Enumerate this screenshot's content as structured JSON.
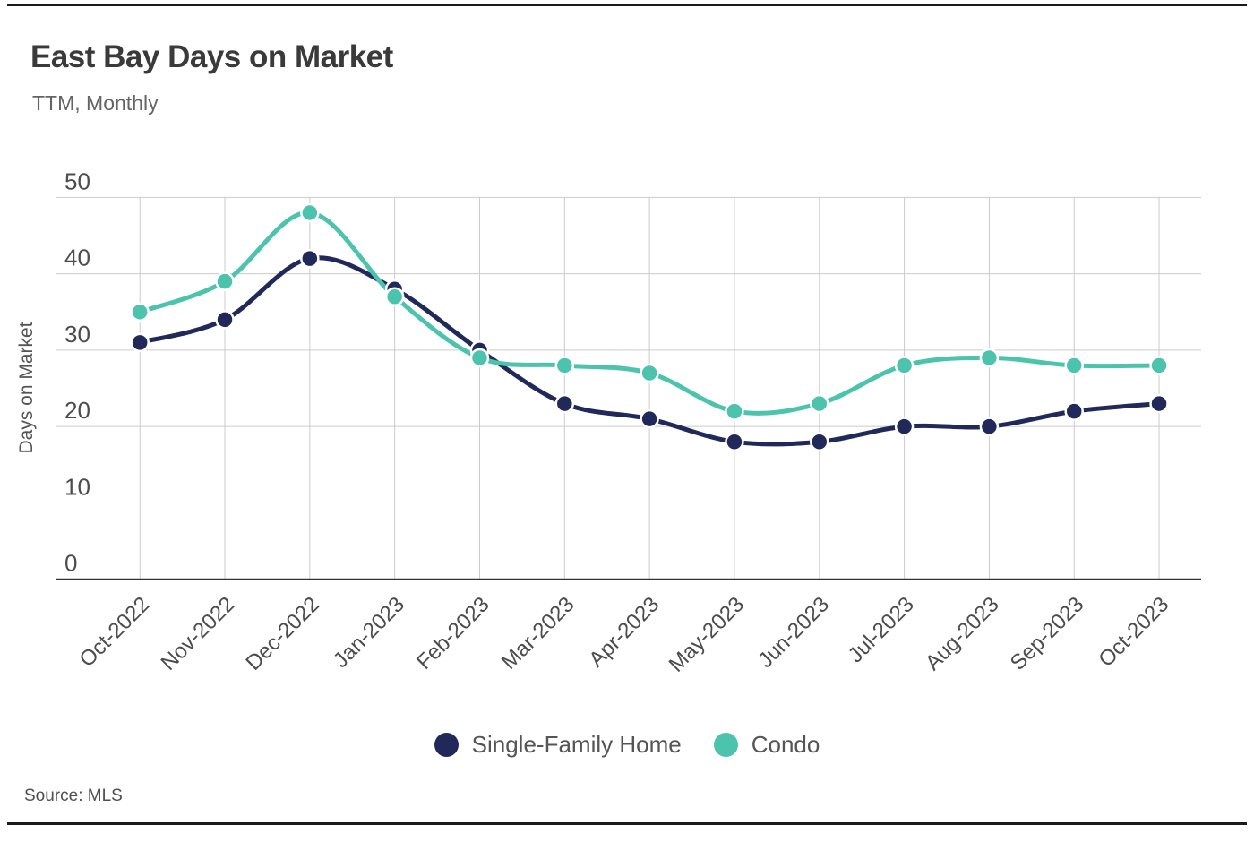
{
  "header": {
    "title": "East Bay Days on Market",
    "subtitle": "TTM, Monthly"
  },
  "footer": {
    "source": "Source: MLS"
  },
  "chart_data": {
    "type": "line",
    "title": "East Bay Days on Market",
    "subtitle": "TTM, Monthly",
    "xlabel": "",
    "ylabel": "Days on Market",
    "ylim": [
      0,
      50
    ],
    "yticks": [
      0,
      10,
      20,
      30,
      40,
      50
    ],
    "grid": true,
    "line_interpolation": "curved",
    "legend_position": "bottom-center",
    "categories": [
      "Oct-2022",
      "Nov-2022",
      "Dec-2022",
      "Jan-2023",
      "Feb-2023",
      "Mar-2023",
      "Apr-2023",
      "May-2023",
      "Jun-2023",
      "Jul-2023",
      "Aug-2023",
      "Sep-2023",
      "Oct-2023"
    ],
    "series": [
      {
        "name": "Single-Family Home",
        "color": "#20295a",
        "values": [
          31,
          34,
          42,
          38,
          30,
          23,
          21,
          18,
          18,
          20,
          20,
          22,
          23
        ]
      },
      {
        "name": "Condo",
        "color": "#4cc3ac",
        "values": [
          35,
          39,
          48,
          37,
          29,
          28,
          27,
          22,
          23,
          28,
          29,
          28,
          28
        ]
      }
    ],
    "source": "Source: MLS"
  },
  "colors": {
    "single_family": "#20295a",
    "condo": "#4cc3ac",
    "gridline": "#cbcbcb",
    "baseline": "#333333",
    "title_text": "#3a3a3a",
    "muted_text": "#555555",
    "rule": "#1a1a1a",
    "background": "#ffffff"
  }
}
